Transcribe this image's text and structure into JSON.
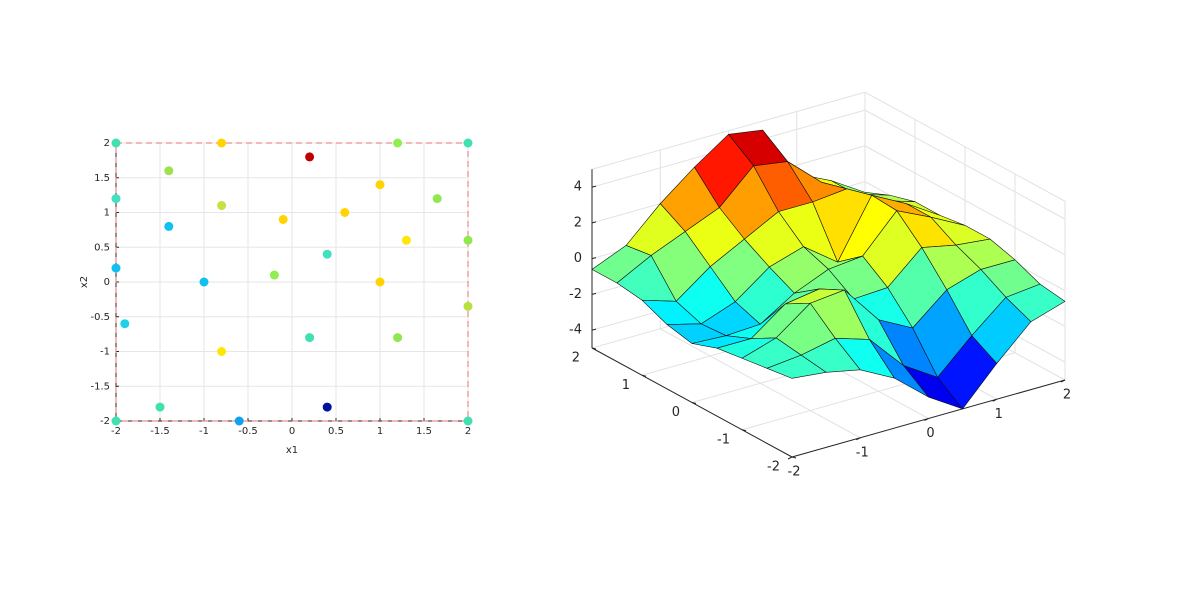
{
  "chart_data": [
    {
      "type": "scatter",
      "x_label": "x1",
      "y_label": "x2",
      "xlim": [
        -2,
        2
      ],
      "ylim": [
        -2,
        2
      ],
      "xticks": [
        -2,
        -1.5,
        -1,
        -0.5,
        0,
        0.5,
        1,
        1.5,
        2
      ],
      "yticks": [
        -2,
        -1.5,
        -1,
        -0.5,
        0,
        0.5,
        1,
        1.5,
        2
      ],
      "grid": true,
      "boundary_color": "#e87070",
      "x": [
        -2,
        -0.8,
        0.2,
        1.2,
        2,
        -1.4,
        -2,
        1,
        1.65,
        -0.8,
        0.6,
        -0.1,
        -1.4,
        1.3,
        2,
        0.4,
        -2,
        -0.2,
        -1,
        1,
        2,
        -1.9,
        0.2,
        1.2,
        -0.8,
        -1.5,
        0.4,
        -2,
        -0.6,
        2
      ],
      "y": [
        2,
        2,
        1.8,
        2,
        2,
        1.6,
        1.2,
        1.4,
        1.2,
        1.1,
        1,
        0.9,
        0.8,
        0.6,
        0.6,
        0.4,
        0.2,
        0.1,
        0,
        0,
        -0.35,
        -0.6,
        -0.8,
        -0.8,
        -1,
        -1.8,
        -1.8,
        -2,
        -2,
        -2
      ],
      "colors": [
        "#40e0b0",
        "#ffd400",
        "#c00000",
        "#90ee50",
        "#40e0b0",
        "#a0e050",
        "#40e0c0",
        "#ffd400",
        "#90e850",
        "#c8e040",
        "#ffd400",
        "#ffd400",
        "#10c0f0",
        "#ffe800",
        "#90e850",
        "#40e0c0",
        "#10c0f0",
        "#90ee50",
        "#10c0f0",
        "#ffd400",
        "#b8e040",
        "#20d0e8",
        "#40e0b0",
        "#90e850",
        "#ffe800",
        "#40e0b0",
        "#0010a0",
        "#40e0b0",
        "#10a0f0",
        "#40e0b0"
      ]
    },
    {
      "type": "surface",
      "colormap": "jet",
      "grid": true,
      "xlim": [
        -2,
        2
      ],
      "ylim": [
        -2,
        2
      ],
      "zlim": [
        -5,
        5
      ],
      "xticks": [
        -2,
        -1,
        0,
        1,
        2
      ],
      "yticks": [
        -2,
        -1,
        0,
        1,
        2
      ],
      "zticks": [
        -4,
        -2,
        0,
        2,
        4
      ],
      "x": [
        -2,
        -1.5,
        -1,
        -0.5,
        0,
        0.5,
        1,
        1.5,
        2
      ],
      "y": [
        -2,
        -1.5,
        -1,
        -0.5,
        0,
        0.5,
        1,
        1.5,
        2
      ],
      "z": [
        [
          -0.6,
          -0.8,
          -1.2,
          -2.2,
          -3.8,
          -5,
          -3,
          -1.2,
          -0.6
        ],
        [
          -0.8,
          -0.6,
          -0.2,
          -0.8,
          -2.8,
          -4,
          -2.2,
          -0.6,
          -0.4
        ],
        [
          -1,
          -0.4,
          1,
          1.2,
          -1,
          -2,
          -0.4,
          0.2,
          0.2
        ],
        [
          -1.2,
          -1.2,
          0.2,
          0.5,
          -0.6,
          -0.5,
          1.2,
          0.8,
          0.6
        ],
        [
          -1.7,
          -1.8,
          -1.7,
          -0.5,
          0.3,
          0.5,
          2.5,
          1.6,
          0.6
        ],
        [
          -1.4,
          -1.9,
          -1.2,
          0.2,
          0.8,
          -0.6,
          2.6,
          1.6,
          0.4
        ],
        [
          -0.8,
          -1.4,
          0,
          1,
          2,
          2,
          2.2,
          1,
          0.4
        ],
        [
          -0.6,
          0.4,
          1.2,
          2,
          3.8,
          3.5,
          1.8,
          0.6,
          0
        ],
        [
          -0.6,
          0.2,
          2,
          3.5,
          4.8,
          4.5,
          1.5,
          0.6,
          -0.6
        ]
      ]
    }
  ]
}
